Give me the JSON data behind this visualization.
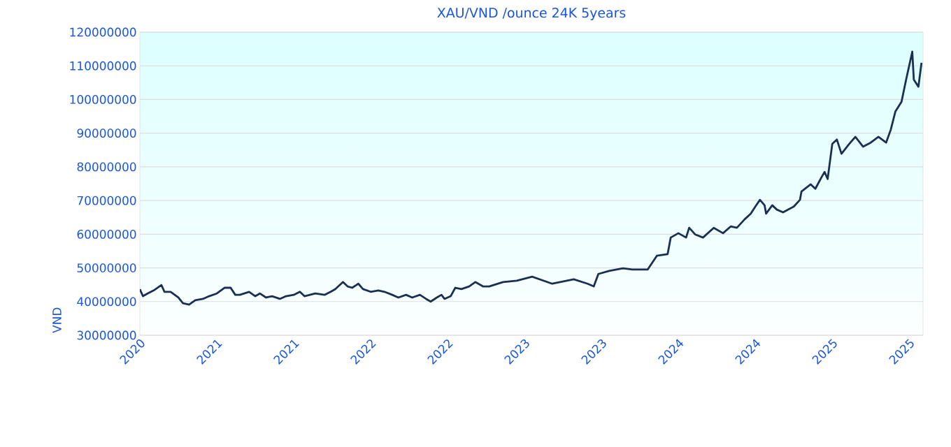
{
  "chart_data": {
    "type": "line",
    "title": "XAU/VND /ounce 24K 5years",
    "ylabel": "VND",
    "x": [
      2020.0,
      2020.02,
      2020.05,
      2020.09,
      2020.14,
      2020.16,
      2020.2,
      2020.25,
      2020.28,
      2020.32,
      2020.36,
      2020.41,
      2020.45,
      2020.5,
      2020.55,
      2020.59,
      2020.62,
      2020.65,
      2020.71,
      2020.75,
      2020.78,
      2020.82,
      2020.86,
      2020.91,
      2020.95,
      2021.0,
      2021.04,
      2021.07,
      2021.14,
      2021.2,
      2021.24,
      2021.27,
      2021.32,
      2021.35,
      2021.38,
      2021.42,
      2021.45,
      2021.5,
      2021.55,
      2021.59,
      2021.64,
      2021.68,
      2021.73,
      2021.77,
      2021.82,
      2021.86,
      2021.89,
      2021.93,
      2021.96,
      2021.98,
      2022.02,
      2022.05,
      2022.09,
      2022.14,
      2022.18,
      2022.23,
      2022.27,
      2022.36,
      2022.45,
      2022.55,
      2022.68,
      2022.82,
      2022.91,
      2022.95,
      2022.98,
      2023.05,
      2023.14,
      2023.2,
      2023.3,
      2023.36,
      2023.43,
      2023.45,
      2023.5,
      2023.55,
      2023.57,
      2023.61,
      2023.66,
      2023.73,
      2023.79,
      2023.84,
      2023.88,
      2023.93,
      2023.97,
      2024.0,
      2024.03,
      2024.06,
      2024.07,
      2024.11,
      2024.14,
      2024.18,
      2024.25,
      2024.29,
      2024.3,
      2024.36,
      2024.39,
      2024.43,
      2024.45,
      2024.47,
      2024.5,
      2024.53,
      2024.56,
      2024.61,
      2024.65,
      2024.7,
      2024.75,
      2024.8,
      2024.85,
      2024.88,
      2024.91,
      2024.95,
      2024.98,
      2025.02,
      2025.03,
      2025.06,
      2025.08
    ],
    "series": [
      {
        "color": "#1b2f52",
        "values": [
          43700000,
          41600000,
          42400000,
          43300000,
          44900000,
          42900000,
          42900000,
          41200000,
          39500000,
          39100000,
          40400000,
          40800000,
          41600000,
          42400000,
          44100000,
          44100000,
          42000000,
          42000000,
          42900000,
          41600000,
          42400000,
          41200000,
          41600000,
          40800000,
          41600000,
          42000000,
          42900000,
          41600000,
          42400000,
          42000000,
          42900000,
          43700000,
          45800000,
          44500000,
          44100000,
          45300000,
          43700000,
          42900000,
          43300000,
          42900000,
          42000000,
          41200000,
          42000000,
          41200000,
          42000000,
          40800000,
          40000000,
          41200000,
          42000000,
          40800000,
          41600000,
          44100000,
          43700000,
          44500000,
          45800000,
          44500000,
          44500000,
          45800000,
          46200000,
          47400000,
          45300000,
          46600000,
          45300000,
          44500000,
          48200000,
          49100000,
          49900000,
          49500000,
          49500000,
          53600000,
          54100000,
          59000000,
          60300000,
          59000000,
          61900000,
          59900000,
          59000000,
          61900000,
          60300000,
          62300000,
          61900000,
          64400000,
          66100000,
          68200000,
          70200000,
          68600000,
          66100000,
          68600000,
          67300000,
          66500000,
          68200000,
          70200000,
          72700000,
          74800000,
          73500000,
          76900000,
          78500000,
          76400000,
          86800000,
          88100000,
          83900000,
          86800000,
          88900000,
          86000000,
          87200000,
          88900000,
          87200000,
          91000000,
          96400000,
          99300000,
          105900000,
          114200000,
          105900000,
          103800000,
          110900000
        ]
      }
    ],
    "xlim": [
      2020,
      2025.09
    ],
    "xticks": [
      {
        "value": 2020,
        "label": "2020"
      },
      {
        "value": 2020.5,
        "label": "2021"
      },
      {
        "value": 2021,
        "label": "2021"
      },
      {
        "value": 2021.5,
        "label": "2022"
      },
      {
        "value": 2022,
        "label": "2022"
      },
      {
        "value": 2022.5,
        "label": "2023"
      },
      {
        "value": 2023,
        "label": "2023"
      },
      {
        "value": 2023.5,
        "label": "2024"
      },
      {
        "value": 2024,
        "label": "2024"
      },
      {
        "value": 2024.5,
        "label": "2025"
      },
      {
        "value": 2025,
        "label": "2025"
      }
    ],
    "ylim": [
      30000000,
      120000000
    ],
    "yticks": [
      30000000,
      40000000,
      50000000,
      60000000,
      70000000,
      80000000,
      90000000,
      100000000,
      110000000,
      120000000
    ],
    "grid": "y",
    "marker": "none",
    "line_style": "solid"
  }
}
